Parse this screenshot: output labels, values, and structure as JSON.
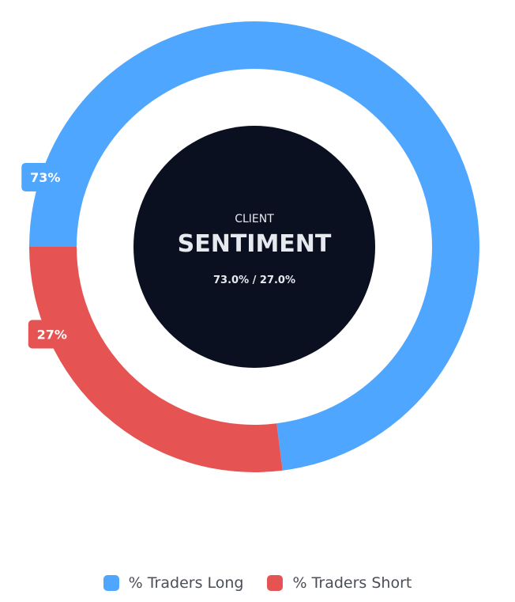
{
  "chart_data": {
    "type": "pie",
    "categories": [
      "% Traders Long",
      "% Traders Short"
    ],
    "values": [
      73,
      27
    ],
    "data_labels": [
      "73%",
      "27%"
    ],
    "colors": [
      "#4fa6ff",
      "#e65353"
    ],
    "legend": "bottom",
    "center": {
      "title": "CLIENT",
      "heading": "SENTIMENT",
      "subtitle": "73.0% / 27.0%",
      "background_color": "#0b1020"
    }
  }
}
